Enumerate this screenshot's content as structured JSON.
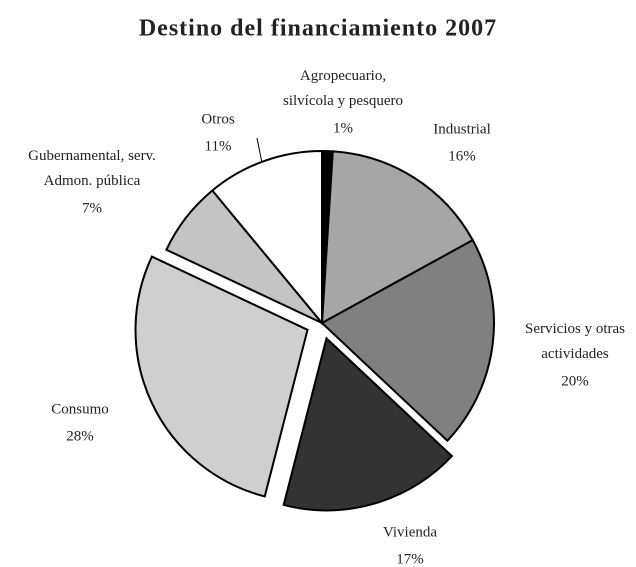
{
  "chart_data": {
    "type": "pie",
    "title": "Destino del financiamiento 2007",
    "categories": [
      "Agropecuario,\nsilvícola y pesquero",
      "Industrial",
      "Servicios y otras\nactividades",
      "Vivienda",
      "Consumo",
      "Gubernamental, serv.\nAdmon. pública",
      "Otros"
    ],
    "values": [
      1,
      16,
      20,
      17,
      28,
      7,
      11
    ],
    "value_labels": [
      "1%",
      "16%",
      "20%",
      "17%",
      "28%",
      "7%",
      "11%"
    ],
    "colors": [
      "#000000",
      "#a6a6a6",
      "#808080",
      "#333333",
      "#cfcfcf",
      "#c4c4c4",
      "#ffffff"
    ],
    "exploded": [
      false,
      false,
      false,
      true,
      true,
      false,
      false
    ]
  }
}
